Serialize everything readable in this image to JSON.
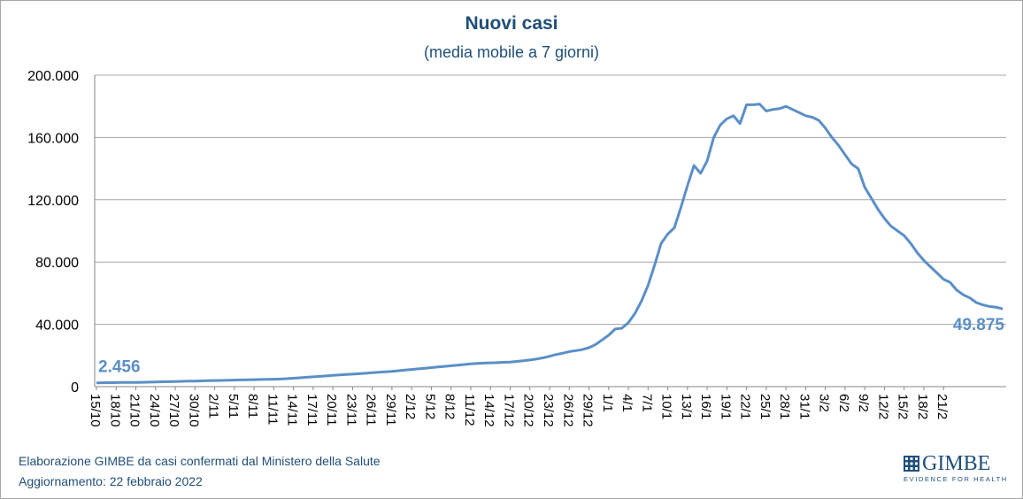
{
  "chart_data": {
    "type": "line",
    "title": "Nuovi casi",
    "subtitle": "(media mobile a 7 giorni)",
    "ylim": [
      0,
      200000
    ],
    "yticks": [
      0,
      40000,
      80000,
      120000,
      160000,
      200000
    ],
    "ytick_labels": [
      "0",
      "40.000",
      "80.000",
      "120.000",
      "160.000",
      "200.000"
    ],
    "xtick_labels": [
      "15/10",
      "18/10",
      "21/10",
      "24/10",
      "27/10",
      "30/10",
      "2/11",
      "5/11",
      "8/11",
      "11/11",
      "14/11",
      "17/11",
      "20/11",
      "23/11",
      "26/11",
      "29/11",
      "2/12",
      "5/12",
      "8/12",
      "11/12",
      "14/12",
      "17/12",
      "20/12",
      "23/12",
      "26/12",
      "29/12",
      "1/1",
      "4/1",
      "7/1",
      "10/1",
      "13/1",
      "16/1",
      "19/1",
      "22/1",
      "25/1",
      "28/1",
      "31/1",
      "3/2",
      "6/2",
      "9/2",
      "12/2",
      "15/2",
      "18/2",
      "21/2"
    ],
    "grid": true,
    "color": "#5b8fc7",
    "series": [
      {
        "values": [
          2456,
          2500,
          2550,
          2600,
          2650,
          2700,
          2750,
          2800,
          2900,
          3000,
          3100,
          3200,
          3300,
          3400,
          3500,
          3600,
          3700,
          3800,
          3900,
          4000,
          4100,
          4200,
          4300,
          4400,
          4500,
          4600,
          4700,
          4800,
          4900,
          5100,
          5400,
          5700,
          6000,
          6300,
          6600,
          6900,
          7200,
          7500,
          7800,
          8000,
          8300,
          8600,
          8900,
          9200,
          9500,
          9800,
          10200,
          10600,
          11000,
          11400,
          11800,
          12200,
          12600,
          13000,
          13400,
          13800,
          14200,
          14600,
          14900,
          15100,
          15300,
          15400,
          15600,
          15800,
          16200,
          16600,
          17100,
          17700,
          18500,
          19500,
          20600,
          21500,
          22500,
          23100,
          23800,
          25000,
          27000,
          30000,
          33000,
          37000,
          37500,
          41000,
          47000,
          55000,
          65000,
          78000,
          92000,
          98000,
          102000,
          115000,
          129000,
          142000,
          137000,
          145000,
          160000,
          168000,
          172000,
          174000,
          169000,
          181000,
          181000,
          181500,
          177000,
          178000,
          178500,
          180000,
          178000,
          176000,
          174000,
          173000,
          171000,
          166000,
          160000,
          155000,
          149000,
          143000,
          140000,
          128000,
          121000,
          114000,
          108000,
          103000,
          100000,
          97000,
          92000,
          86000,
          81000,
          77000,
          73000,
          69000,
          67000,
          62000,
          59000,
          57000,
          54000,
          52500,
          51500,
          51000,
          49875
        ]
      }
    ],
    "annotations": {
      "first": "2.456",
      "last": "49.875"
    }
  },
  "footer": {
    "line1": "Elaborazione GIMBE da casi confermati dal Ministero della Salute",
    "line2": "Aggiornamento:  22 febbraio 2022"
  },
  "logo": {
    "name": "GIMBE",
    "tagline": "EVIDENCE FOR HEALTH"
  }
}
